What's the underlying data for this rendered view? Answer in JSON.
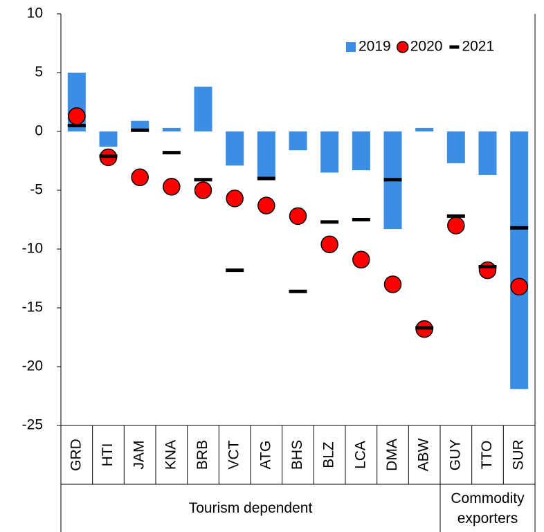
{
  "chart_data": {
    "type": "bar",
    "groups": [
      {
        "name": "Tourism dependent",
        "categories": [
          "GRD",
          "HTI",
          "JAM",
          "KNA",
          "BRB",
          "VCT",
          "ATG",
          "BHS",
          "BLZ",
          "LCA",
          "DMA",
          "ABW"
        ]
      },
      {
        "name": "Commodity exporters",
        "categories": [
          "GUY",
          "TTO",
          "SUR"
        ]
      }
    ],
    "series": [
      {
        "name": "2019",
        "type": "bar",
        "color": "#3b8ee4",
        "values": [
          5.0,
          -1.3,
          0.9,
          0.3,
          3.8,
          -2.9,
          -4.0,
          -1.6,
          -3.5,
          -3.3,
          -8.3,
          0.3,
          -2.7,
          -3.7,
          -21.9
        ]
      },
      {
        "name": "2020",
        "type": "circle",
        "color": "#ff0000",
        "values": [
          1.3,
          -2.2,
          -3.9,
          -4.7,
          -5.0,
          -5.7,
          -6.3,
          -7.2,
          -9.6,
          -10.9,
          -13.0,
          -16.8,
          -8.0,
          -11.8,
          -13.2
        ]
      },
      {
        "name": "2021",
        "type": "dash",
        "color": "#000000",
        "values": [
          0.5,
          -2.1,
          0.1,
          -1.8,
          -4.1,
          -11.8,
          -4.0,
          -13.6,
          -7.7,
          -7.5,
          -4.1,
          -16.7,
          -7.2,
          -11.5,
          -8.2
        ]
      }
    ],
    "ylim": [
      -25,
      10
    ],
    "yticks": [
      10,
      5,
      0,
      -5,
      -10,
      -15,
      -20,
      -25
    ],
    "legend": "upper right"
  }
}
